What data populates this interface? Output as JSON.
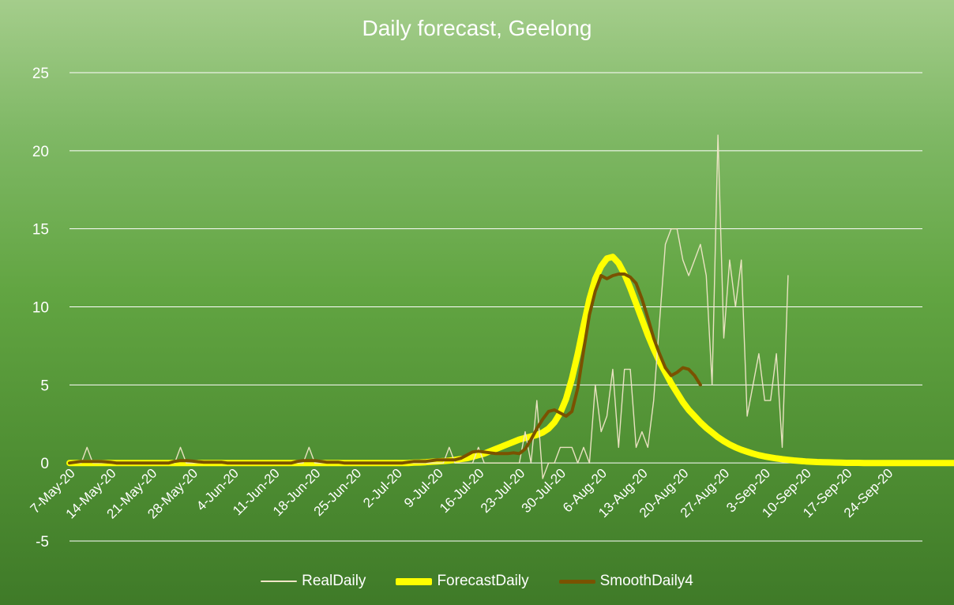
{
  "chart_data": {
    "type": "line",
    "title": "Daily forecast, Geelong",
    "xlabel": "",
    "ylabel": "",
    "ylim": [
      -5,
      25
    ],
    "yticks": [
      -5,
      0,
      5,
      10,
      15,
      20,
      25
    ],
    "grid": true,
    "legend_position": "bottom",
    "x_start": "7-May-20",
    "x_end": "30-Sep-20",
    "x_tick_labels": [
      "7-May-20",
      "14-May-20",
      "21-May-20",
      "28-May-20",
      "4-Jun-20",
      "11-Jun-20",
      "18-Jun-20",
      "25-Jun-20",
      "2-Jul-20",
      "9-Jul-20",
      "16-Jul-20",
      "23-Jul-20",
      "30-Jul-20",
      "6-Aug-20",
      "13-Aug-20",
      "20-Aug-20",
      "27-Aug-20",
      "3-Sep-20",
      "10-Sep-20",
      "17-Sep-20",
      "24-Sep-20"
    ],
    "series": [
      {
        "name": "RealDaily",
        "color": "#f0e6c8",
        "start": "7-May-20",
        "values": [
          0,
          0,
          0,
          1,
          0,
          0,
          0,
          0,
          0,
          0,
          0,
          0,
          0,
          0,
          0,
          0,
          0,
          0,
          0,
          1,
          0,
          0,
          0,
          0,
          0,
          0,
          0,
          0,
          0,
          0,
          0,
          0,
          0,
          0,
          0,
          0,
          0,
          0,
          0,
          0,
          0,
          1,
          0,
          0,
          0,
          0,
          0,
          0,
          0,
          0,
          0,
          0,
          0,
          0,
          0,
          0,
          0,
          0,
          0,
          0,
          0,
          0,
          0,
          0,
          0,
          1,
          0,
          0,
          0,
          0,
          1,
          0,
          0,
          0,
          0,
          0,
          0,
          0,
          2,
          0,
          4,
          -1,
          0,
          0,
          1,
          1,
          1,
          0,
          1,
          0,
          5,
          2,
          3,
          6,
          1,
          6,
          6,
          1,
          2,
          1,
          4,
          9,
          14,
          15,
          15,
          13,
          12,
          13,
          14,
          12,
          5,
          21,
          8,
          13,
          10,
          13,
          3,
          5,
          7,
          4,
          4,
          7,
          1,
          12
        ]
      },
      {
        "name": "ForecastDaily",
        "color": "#ffff00",
        "start": "7-May-20",
        "values": [
          0,
          0,
          0,
          0,
          0,
          0,
          0,
          0,
          0,
          0,
          0,
          0,
          0,
          0,
          0,
          0,
          0,
          0,
          0,
          0,
          0,
          0,
          0,
          0,
          0,
          0,
          0,
          0,
          0,
          0,
          0,
          0,
          0,
          0,
          0,
          0,
          0,
          0,
          0,
          0,
          0,
          0,
          0,
          0,
          0,
          0,
          0,
          0,
          0,
          0,
          0,
          0,
          0,
          0,
          0,
          0,
          0,
          0,
          0,
          0.02,
          0.03,
          0.05,
          0.08,
          0.1,
          0.12,
          0.15,
          0.2,
          0.25,
          0.3,
          0.4,
          0.5,
          0.6,
          0.75,
          0.9,
          1.05,
          1.2,
          1.35,
          1.5,
          1.6,
          1.7,
          1.8,
          1.95,
          2.2,
          2.6,
          3.2,
          4.1,
          5.4,
          7,
          8.8,
          10.5,
          11.8,
          12.6,
          13.1,
          13.2,
          12.8,
          12.1,
          11.2,
          10.2,
          9.2,
          8.2,
          7.3,
          6.5,
          5.8,
          5.1,
          4.5,
          3.9,
          3.4,
          3,
          2.6,
          2.25,
          1.95,
          1.65,
          1.4,
          1.18,
          1,
          0.85,
          0.72,
          0.6,
          0.5,
          0.42,
          0.35,
          0.29,
          0.24,
          0.2,
          0.16,
          0.13,
          0.1,
          0.08,
          0.06,
          0.05,
          0.04,
          0.03,
          0.02,
          0.01,
          0.01,
          0.01,
          0,
          0,
          0,
          0,
          0,
          0,
          0,
          0,
          0,
          0,
          0,
          0,
          0,
          0,
          0,
          0,
          0,
          0,
          0,
          0,
          0,
          0,
          0,
          0,
          0,
          0,
          0,
          0,
          0,
          0,
          0,
          0,
          0,
          0,
          0,
          0,
          0,
          0,
          0,
          0,
          0,
          0,
          0,
          0,
          0,
          0,
          0,
          0,
          0,
          0,
          0,
          0,
          0,
          0,
          0,
          0,
          0,
          0,
          0,
          0,
          0,
          0,
          0,
          0,
          0,
          0,
          0,
          0,
          0,
          0,
          0,
          0,
          0,
          0,
          0,
          0,
          0,
          0,
          0,
          0,
          0,
          0,
          0,
          0,
          0,
          0,
          0,
          0,
          0,
          0,
          0,
          0,
          0,
          0,
          0,
          0,
          0,
          0,
          0,
          0,
          0,
          0,
          0,
          0,
          0,
          0,
          0,
          0,
          0,
          0,
          0,
          0,
          0,
          0,
          0,
          0,
          0,
          0,
          0,
          0,
          0,
          0,
          0,
          0,
          0,
          0,
          0,
          0,
          0,
          0,
          0,
          0,
          0,
          0,
          0,
          0,
          0,
          0,
          0,
          0,
          0,
          0,
          0,
          0,
          0,
          0,
          0,
          0,
          0,
          0,
          0,
          0,
          0,
          0,
          0,
          0
        ]
      },
      {
        "name": "SmoothDaily4",
        "color": "#7a5200",
        "start": "7-May-20",
        "values": [
          0,
          0.05,
          0.1,
          0.1,
          0.1,
          0.1,
          0.08,
          0.05,
          0,
          0,
          0,
          0,
          0,
          0,
          0,
          0,
          0,
          0,
          0.1,
          0.15,
          0.15,
          0.12,
          0.08,
          0.05,
          0.05,
          0.05,
          0.05,
          0,
          0,
          0,
          0,
          0,
          0,
          0,
          0,
          0,
          0,
          0,
          0,
          0.1,
          0.15,
          0.15,
          0.15,
          0.1,
          0.05,
          0.05,
          0.05,
          0,
          0,
          0,
          0,
          0,
          0,
          0,
          0,
          0,
          0,
          0,
          0.05,
          0.1,
          0.1,
          0.1,
          0.15,
          0.2,
          0.2,
          0.2,
          0.2,
          0.3,
          0.5,
          0.7,
          0.75,
          0.7,
          0.65,
          0.6,
          0.6,
          0.6,
          0.65,
          0.6,
          0.9,
          1.5,
          2.2,
          2.8,
          3.3,
          3.4,
          3.2,
          3,
          3.3,
          4.8,
          7.2,
          9.5,
          11,
          12,
          11.8,
          12,
          12.1,
          12.1,
          11.9,
          11.5,
          10.5,
          9.3,
          8,
          7,
          6.1,
          5.6,
          5.8,
          6.1,
          6,
          5.6,
          5
        ]
      }
    ]
  }
}
